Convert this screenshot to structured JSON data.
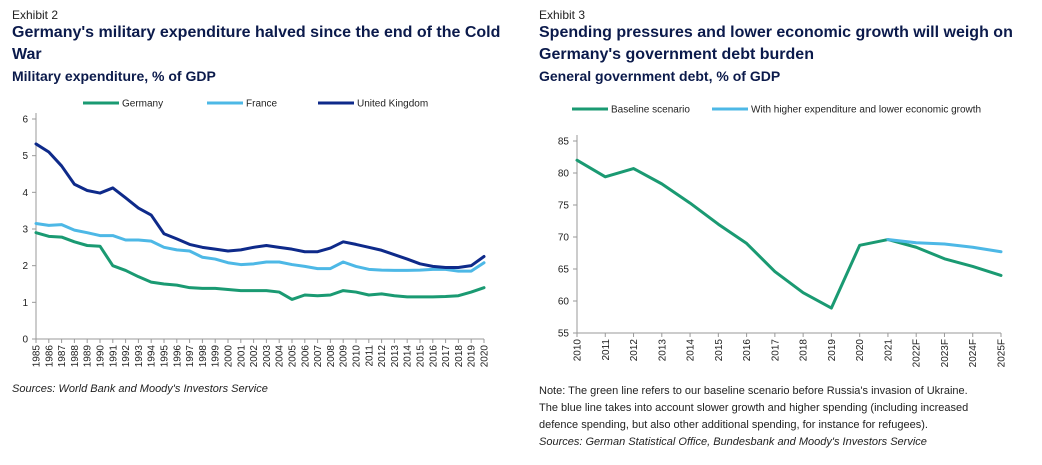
{
  "left": {
    "exhibit": "Exhibit 2",
    "title_line1": "Germany's military expenditure halved since the end of the Cold",
    "title_line2": "War",
    "subtitle": "Military expenditure, % of GDP",
    "source": "Sources: World Bank and Moody's Investors Service"
  },
  "right": {
    "exhibit": "Exhibit 3",
    "title_line1": "Spending pressures and lower economic growth will weigh on",
    "title_line2": "Germany's government debt burden",
    "subtitle": "General government debt, % of GDP",
    "note_line1": "Note: The green line refers to our baseline scenario before Russia's invasion of Ukraine.",
    "note_line2": "The blue line takes into account slower growth and higher spending (including increased",
    "note_line3": "defence spending, but also other additional spending, for instance for refugees).",
    "source": "Sources: German Statistical Office, Bundesbank and Moody's Investors Service"
  },
  "colors": {
    "green": "#1a9a72",
    "light_blue": "#4db8e6",
    "navy": "#0e2a8a",
    "axis": "#999999"
  },
  "chart_data": [
    {
      "type": "line",
      "title": "Germany's military expenditure halved since the end of the Cold War",
      "ylabel": "Military expenditure, % of GDP",
      "ylim": [
        0,
        6
      ],
      "yticks": [
        0,
        1,
        2,
        3,
        4,
        5,
        6
      ],
      "x": [
        "1985",
        "1986",
        "1987",
        "1988",
        "1989",
        "1990",
        "1991",
        "1992",
        "1993",
        "1994",
        "1995",
        "1996",
        "1997",
        "1998",
        "1999",
        "2000",
        "2001",
        "2002",
        "2003",
        "2004",
        "2005",
        "2006",
        "2007",
        "2008",
        "2009",
        "2010",
        "2011",
        "2012",
        "2013",
        "2014",
        "2015",
        "2016",
        "2017",
        "2018",
        "2019",
        "2020"
      ],
      "legend_position": "top",
      "series": [
        {
          "name": "Germany",
          "color": "#1a9a72",
          "values": [
            2.9,
            2.8,
            2.78,
            2.65,
            2.55,
            2.53,
            2.0,
            1.87,
            1.7,
            1.55,
            1.5,
            1.47,
            1.4,
            1.38,
            1.38,
            1.35,
            1.32,
            1.32,
            1.32,
            1.28,
            1.08,
            1.2,
            1.18,
            1.2,
            1.32,
            1.28,
            1.2,
            1.23,
            1.18,
            1.15,
            1.15,
            1.15,
            1.16,
            1.18,
            1.28,
            1.4
          ]
        },
        {
          "name": "France",
          "color": "#4db8e6",
          "values": [
            3.15,
            3.1,
            3.12,
            2.97,
            2.9,
            2.82,
            2.82,
            2.7,
            2.7,
            2.67,
            2.5,
            2.43,
            2.4,
            2.23,
            2.18,
            2.08,
            2.03,
            2.05,
            2.1,
            2.1,
            2.03,
            1.98,
            1.92,
            1.92,
            2.1,
            1.98,
            1.9,
            1.88,
            1.87,
            1.87,
            1.88,
            1.9,
            1.9,
            1.85,
            1.85,
            2.08
          ]
        },
        {
          "name": "United Kingdom",
          "color": "#0e2a8a",
          "values": [
            5.32,
            5.1,
            4.72,
            4.22,
            4.05,
            3.98,
            4.12,
            3.85,
            3.57,
            3.38,
            2.87,
            2.73,
            2.58,
            2.5,
            2.45,
            2.4,
            2.43,
            2.5,
            2.55,
            2.5,
            2.45,
            2.38,
            2.38,
            2.48,
            2.65,
            2.58,
            2.5,
            2.42,
            2.3,
            2.18,
            2.05,
            1.98,
            1.95,
            1.95,
            2.0,
            2.25
          ]
        }
      ]
    },
    {
      "type": "line",
      "title": "Spending pressures and lower economic growth will weigh on Germany's government debt burden",
      "ylabel": "General government debt, % of GDP",
      "ylim": [
        55,
        85
      ],
      "yticks": [
        55,
        60,
        65,
        70,
        75,
        80,
        85
      ],
      "x": [
        "2010",
        "2011",
        "2012",
        "2013",
        "2014",
        "2015",
        "2016",
        "2017",
        "2018",
        "2019",
        "2020",
        "2021",
        "2022F",
        "2023F",
        "2024F",
        "2025F"
      ],
      "legend_position": "top",
      "series": [
        {
          "name": "Baseline scenario",
          "color": "#1a9a72",
          "values": [
            82.0,
            79.4,
            80.7,
            78.3,
            75.3,
            72.0,
            69.0,
            64.6,
            61.3,
            58.9,
            68.7,
            69.6,
            68.4,
            66.6,
            65.4,
            64.0
          ]
        },
        {
          "name": "With higher expenditure and lower economic growth",
          "color": "#4db8e6",
          "values": [
            null,
            null,
            null,
            null,
            null,
            null,
            null,
            null,
            null,
            null,
            null,
            69.6,
            69.1,
            68.9,
            68.4,
            67.7
          ]
        }
      ]
    }
  ]
}
